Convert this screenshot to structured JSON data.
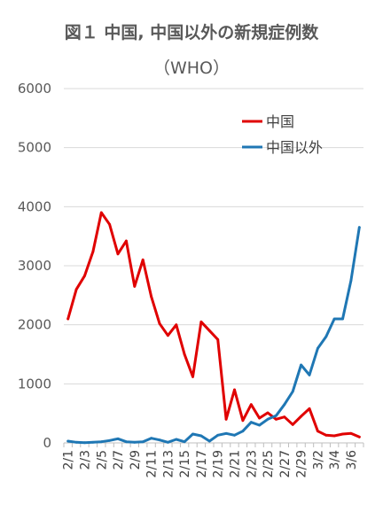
{
  "title": "図１ 中国, 中国以外の新規症例数",
  "subtitle": "（WHO）",
  "chart_data": {
    "type": "line",
    "title": "図１ 中国, 中国以外の新規症例数",
    "subtitle": "（WHO）",
    "xlabel": "",
    "ylabel": "",
    "ylim": [
      0,
      6000
    ],
    "yticks": [
      0,
      1000,
      2000,
      3000,
      4000,
      5000,
      6000
    ],
    "grid": "horizontal",
    "legend_position": "top-right",
    "x": [
      "2/1",
      "2/2",
      "2/3",
      "2/4",
      "2/5",
      "2/6",
      "2/7",
      "2/8",
      "2/9",
      "2/10",
      "2/11",
      "2/12",
      "2/13",
      "2/14",
      "2/15",
      "2/16",
      "2/17",
      "2/18",
      "2/19",
      "2/20",
      "2/21",
      "2/22",
      "2/23",
      "2/24",
      "2/25",
      "2/26",
      "2/27",
      "2/28",
      "2/29",
      "3/1",
      "3/2",
      "3/3",
      "3/4",
      "3/5",
      "3/6",
      "3/7"
    ],
    "x_tick_labels": [
      "2/1",
      "2/3",
      "2/5",
      "2/7",
      "2/9",
      "2/11",
      "2/13",
      "2/15",
      "2/17",
      "2/19",
      "2/21",
      "2/23",
      "2/25",
      "2/27",
      "2/29",
      "3/2",
      "3/4",
      "3/6"
    ],
    "series": [
      {
        "name": "中国",
        "color": "#e00000",
        "values": [
          2100,
          2600,
          2830,
          3240,
          3900,
          3700,
          3200,
          3420,
          2650,
          3100,
          2480,
          2020,
          1820,
          2000,
          1500,
          1120,
          2050,
          1900,
          1750,
          400,
          900,
          380,
          650,
          420,
          510,
          400,
          440,
          310,
          450,
          580,
          200,
          130,
          120,
          150,
          160,
          100
        ]
      },
      {
        "name": "中国以外",
        "color": "#1f77b4",
        "values": [
          30,
          10,
          5,
          10,
          20,
          40,
          70,
          20,
          10,
          20,
          80,
          50,
          10,
          60,
          20,
          150,
          120,
          30,
          130,
          160,
          130,
          200,
          350,
          300,
          400,
          460,
          650,
          870,
          1320,
          1150,
          1600,
          1800,
          2100,
          2100,
          2750,
          3650
        ]
      }
    ]
  }
}
